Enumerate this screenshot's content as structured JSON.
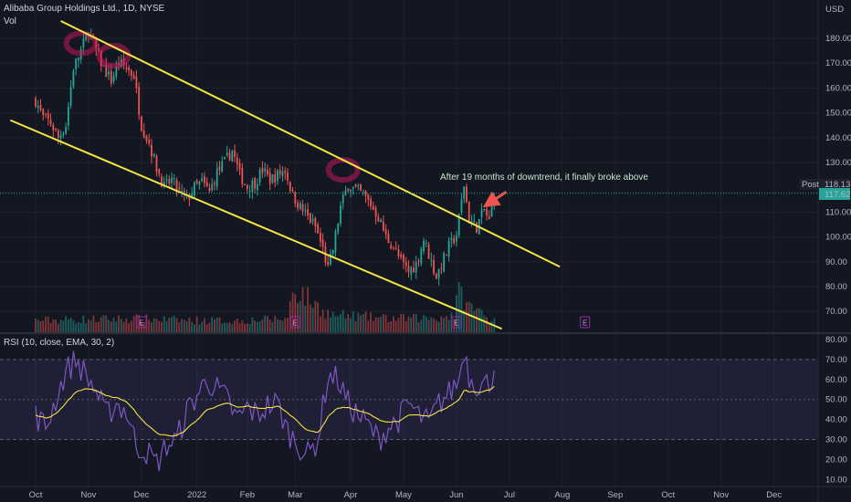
{
  "header": {
    "symbol_line": "Alibaba Group Holdings Ltd., 1D, NYSE",
    "volume_label": "Vol",
    "rsi_label": "RSI (10, close, EMA, 30, 2)"
  },
  "price_scale": {
    "currency": "USD",
    "ticks": [
      "180.00",
      "170.00",
      "160.00",
      "150.00",
      "140.00",
      "130.00",
      "110.00",
      "100.00",
      "90.00",
      "80.00",
      "70.00"
    ],
    "post_label": "Post",
    "post_price": "118.13",
    "last_price": "117.62",
    "earnings_marker": "E"
  },
  "rsi_scale": {
    "ticks": [
      "80.00",
      "70.00",
      "60.00",
      "50.00",
      "40.00",
      "30.00",
      "20.00",
      "10.00"
    ],
    "upper_band": 70,
    "lower_band": 30
  },
  "time_axis": {
    "labels": [
      "Oct",
      "Nov",
      "Dec",
      "2022",
      "Feb",
      "Mar",
      "Apr",
      "May",
      "Jun",
      "Jul",
      "Aug",
      "Sep",
      "Oct",
      "Nov",
      "Dec"
    ]
  },
  "annotation": {
    "text": "After 19 months of downtrend, it finally broke above"
  },
  "colors": {
    "background": "#131722",
    "up": "#26a69a",
    "down": "#ef5350",
    "trendline": "#f5e542",
    "rsi_line": "#7e57c2",
    "rsi_ma": "#f5e542",
    "highlight": "#c2185b"
  },
  "chart_data": {
    "type": "candlestick",
    "price_range": [
      65,
      190
    ],
    "rsi_range": [
      8,
      82
    ],
    "month_markers": [
      {
        "label": "Oct",
        "day": 0
      },
      {
        "label": "Nov",
        "day": 21
      },
      {
        "label": "Dec",
        "day": 42
      },
      {
        "label": "2022",
        "day": 64
      },
      {
        "label": "Feb",
        "day": 84
      },
      {
        "label": "Mar",
        "day": 103
      },
      {
        "label": "Apr",
        "day": 125
      },
      {
        "label": "May",
        "day": 146
      },
      {
        "label": "Jun",
        "day": 167
      }
    ],
    "price_anchors": [
      [
        0,
        155
      ],
      [
        3,
        148
      ],
      [
        6,
        146
      ],
      [
        9,
        140
      ],
      [
        12,
        145
      ],
      [
        15,
        168
      ],
      [
        18,
        175
      ],
      [
        21,
        183
      ],
      [
        24,
        175
      ],
      [
        27,
        168
      ],
      [
        30,
        163
      ],
      [
        33,
        170
      ],
      [
        36,
        168
      ],
      [
        39,
        165
      ],
      [
        42,
        145
      ],
      [
        45,
        138
      ],
      [
        48,
        128
      ],
      [
        51,
        120
      ],
      [
        54,
        123
      ],
      [
        57,
        118
      ],
      [
        60,
        115
      ],
      [
        63,
        120
      ],
      [
        66,
        122
      ],
      [
        69,
        118
      ],
      [
        72,
        126
      ],
      [
        75,
        130
      ],
      [
        78,
        135
      ],
      [
        81,
        125
      ],
      [
        84,
        120
      ],
      [
        87,
        122
      ],
      [
        90,
        127
      ],
      [
        93,
        123
      ],
      [
        96,
        125
      ],
      [
        99,
        127
      ],
      [
        102,
        117
      ],
      [
        105,
        112
      ],
      [
        108,
        108
      ],
      [
        111,
        104
      ],
      [
        114,
        95
      ],
      [
        116,
        87
      ],
      [
        118,
        95
      ],
      [
        121,
        112
      ],
      [
        124,
        121
      ],
      [
        127,
        119
      ],
      [
        130,
        117
      ],
      [
        133,
        113
      ],
      [
        136,
        108
      ],
      [
        139,
        100
      ],
      [
        142,
        96
      ],
      [
        145,
        90
      ],
      [
        148,
        86
      ],
      [
        151,
        89
      ],
      [
        154,
        99
      ],
      [
        157,
        90
      ],
      [
        159,
        84
      ],
      [
        161,
        89
      ],
      [
        164,
        96
      ],
      [
        167,
        101
      ],
      [
        170,
        121
      ],
      [
        172,
        107
      ],
      [
        175,
        104
      ],
      [
        178,
        111
      ],
      [
        180,
        106
      ],
      [
        182,
        118
      ]
    ],
    "rsi_anchors": [
      [
        0,
        42
      ],
      [
        4,
        36
      ],
      [
        8,
        50
      ],
      [
        12,
        64
      ],
      [
        16,
        70
      ],
      [
        20,
        62
      ],
      [
        24,
        54
      ],
      [
        28,
        42
      ],
      [
        32,
        48
      ],
      [
        36,
        44
      ],
      [
        40,
        27
      ],
      [
        44,
        24
      ],
      [
        48,
        18
      ],
      [
        52,
        27
      ],
      [
        56,
        30
      ],
      [
        60,
        44
      ],
      [
        64,
        52
      ],
      [
        68,
        60
      ],
      [
        72,
        55
      ],
      [
        76,
        50
      ],
      [
        80,
        40
      ],
      [
        84,
        46
      ],
      [
        88,
        42
      ],
      [
        92,
        47
      ],
      [
        96,
        48
      ],
      [
        100,
        34
      ],
      [
        104,
        28
      ],
      [
        108,
        22
      ],
      [
        112,
        30
      ],
      [
        116,
        62
      ],
      [
        120,
        60
      ],
      [
        124,
        48
      ],
      [
        128,
        42
      ],
      [
        132,
        37
      ],
      [
        136,
        30
      ],
      [
        140,
        36
      ],
      [
        144,
        40
      ],
      [
        148,
        48
      ],
      [
        152,
        42
      ],
      [
        156,
        38
      ],
      [
        160,
        48
      ],
      [
        164,
        53
      ],
      [
        168,
        60
      ],
      [
        170,
        76
      ],
      [
        172,
        62
      ],
      [
        176,
        57
      ],
      [
        180,
        58
      ],
      [
        182,
        66
      ]
    ],
    "volume_anchors": [
      [
        0,
        0.28
      ],
      [
        20,
        0.3
      ],
      [
        40,
        0.32
      ],
      [
        60,
        0.28
      ],
      [
        80,
        0.27
      ],
      [
        100,
        0.32
      ],
      [
        102,
        1.0
      ],
      [
        106,
        0.9
      ],
      [
        110,
        0.7
      ],
      [
        114,
        0.5
      ],
      [
        118,
        0.4
      ],
      [
        125,
        0.38
      ],
      [
        140,
        0.32
      ],
      [
        160,
        0.34
      ],
      [
        166,
        0.42
      ],
      [
        168,
        1.0
      ],
      [
        172,
        0.6
      ],
      [
        176,
        0.5
      ],
      [
        180,
        0.3
      ],
      [
        182,
        0.35
      ]
    ],
    "earnings_days": [
      42,
      103,
      167,
      218
    ],
    "channel_upper": [
      [
        10,
        187
      ],
      [
        208,
        88
      ]
    ],
    "channel_lower": [
      [
        -10,
        147
      ],
      [
        185,
        63
      ]
    ],
    "breakout_marker": {
      "day": 178,
      "price": 113
    },
    "highlight_rings": [
      {
        "day": 18,
        "price": 178
      },
      {
        "day": 31,
        "price": 173
      },
      {
        "day": 122,
        "price": 127
      }
    ]
  }
}
